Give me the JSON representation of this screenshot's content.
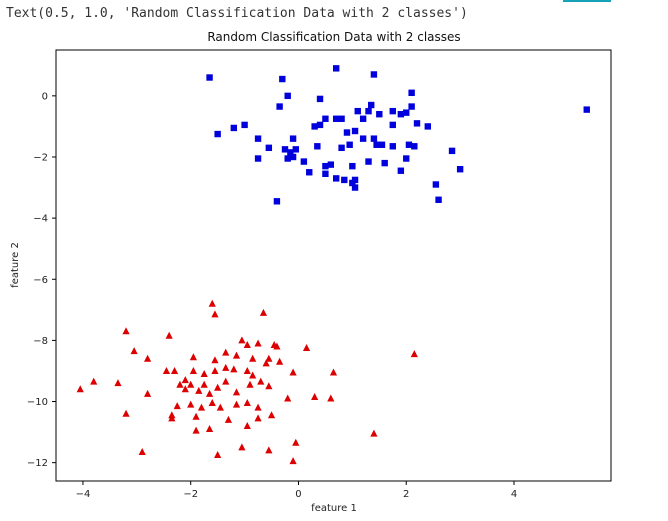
{
  "output_text": "Text(0.5, 1.0, 'Random Classification Data with 2 classes')",
  "colors": {
    "class0": "#0000dd",
    "class1": "#dd0000",
    "accent": "#17a2b8",
    "frame": "#000000"
  },
  "chart_data": {
    "type": "scatter",
    "title": "Random Classification Data with 2 classes",
    "xlabel": "feature 1",
    "ylabel": "feature 2",
    "xlim": [
      -4.5,
      5.8
    ],
    "ylim": [
      -12.6,
      1.5
    ],
    "xticks": [
      -4,
      -2,
      0,
      2,
      4
    ],
    "yticks": [
      0,
      -2,
      -4,
      -6,
      -8,
      -10,
      -12
    ],
    "grid": false,
    "series": [
      {
        "marker": "square",
        "color": "#0000dd",
        "points": [
          [
            -1.65,
            0.6
          ],
          [
            -0.3,
            0.55
          ],
          [
            0.7,
            0.9
          ],
          [
            1.4,
            0.7
          ],
          [
            -0.2,
            0.0
          ],
          [
            0.4,
            -0.1
          ],
          [
            2.1,
            0.1
          ],
          [
            -0.35,
            -0.35
          ],
          [
            1.35,
            -0.3
          ],
          [
            2.1,
            -0.35
          ],
          [
            5.35,
            -0.45
          ],
          [
            1.1,
            -0.5
          ],
          [
            1.3,
            -0.5
          ],
          [
            1.75,
            -0.5
          ],
          [
            0.5,
            -0.75
          ],
          [
            0.7,
            -0.75
          ],
          [
            0.8,
            -0.75
          ],
          [
            1.2,
            -0.75
          ],
          [
            1.5,
            -0.6
          ],
          [
            1.9,
            -0.6
          ],
          [
            2.0,
            -0.55
          ],
          [
            0.4,
            -0.95
          ],
          [
            0.3,
            -1.0
          ],
          [
            1.75,
            -0.95
          ],
          [
            2.2,
            -0.9
          ],
          [
            2.4,
            -1.0
          ],
          [
            -1.0,
            -0.95
          ],
          [
            -1.2,
            -1.05
          ],
          [
            -1.5,
            -1.25
          ],
          [
            -0.75,
            -1.4
          ],
          [
            -0.1,
            -1.4
          ],
          [
            0.9,
            -1.2
          ],
          [
            1.05,
            -1.15
          ],
          [
            1.2,
            -1.4
          ],
          [
            1.4,
            -1.4
          ],
          [
            -0.55,
            -1.7
          ],
          [
            -0.25,
            -1.75
          ],
          [
            -0.15,
            -1.85
          ],
          [
            -0.05,
            -1.75
          ],
          [
            0.35,
            -1.65
          ],
          [
            0.8,
            -1.7
          ],
          [
            0.95,
            -1.6
          ],
          [
            1.45,
            -1.6
          ],
          [
            1.55,
            -1.6
          ],
          [
            1.75,
            -1.65
          ],
          [
            2.05,
            -1.6
          ],
          [
            2.15,
            -1.65
          ],
          [
            2.85,
            -1.8
          ],
          [
            -0.75,
            -2.05
          ],
          [
            -0.2,
            -2.05
          ],
          [
            -0.1,
            -2.0
          ],
          [
            0.1,
            -2.15
          ],
          [
            0.5,
            -2.3
          ],
          [
            0.6,
            -2.25
          ],
          [
            1.0,
            -2.3
          ],
          [
            1.3,
            -2.15
          ],
          [
            1.6,
            -2.2
          ],
          [
            2.0,
            -2.05
          ],
          [
            0.5,
            -2.55
          ],
          [
            0.7,
            -2.7
          ],
          [
            0.85,
            -2.75
          ],
          [
            1.0,
            -2.85
          ],
          [
            1.05,
            -2.75
          ],
          [
            1.9,
            -2.45
          ],
          [
            3.0,
            -2.4
          ],
          [
            2.55,
            -2.9
          ],
          [
            1.05,
            -3.0
          ],
          [
            -0.4,
            -3.45
          ],
          [
            2.6,
            -3.4
          ],
          [
            0.2,
            -2.5
          ]
        ]
      },
      {
        "marker": "triangle",
        "color": "#dd0000",
        "points": [
          [
            -1.6,
            -6.8
          ],
          [
            -1.55,
            -7.15
          ],
          [
            -0.65,
            -7.1
          ],
          [
            -3.2,
            -7.7
          ],
          [
            -2.4,
            -7.85
          ],
          [
            -3.05,
            -8.35
          ],
          [
            -2.8,
            -8.6
          ],
          [
            -1.05,
            -8.0
          ],
          [
            -0.95,
            -8.15
          ],
          [
            -0.75,
            -8.1
          ],
          [
            -0.45,
            -8.15
          ],
          [
            -0.4,
            -8.2
          ],
          [
            0.15,
            -8.25
          ],
          [
            2.15,
            -8.45
          ],
          [
            -1.95,
            -8.55
          ],
          [
            -1.55,
            -8.65
          ],
          [
            -1.35,
            -8.4
          ],
          [
            -1.15,
            -8.5
          ],
          [
            -0.85,
            -8.6
          ],
          [
            -0.55,
            -8.6
          ],
          [
            -2.45,
            -9.0
          ],
          [
            -2.3,
            -9.0
          ],
          [
            -2.1,
            -9.3
          ],
          [
            -1.95,
            -9.0
          ],
          [
            -1.75,
            -9.1
          ],
          [
            -1.55,
            -9.0
          ],
          [
            -1.35,
            -8.9
          ],
          [
            -1.2,
            -8.95
          ],
          [
            -0.95,
            -9.0
          ],
          [
            -0.85,
            -9.15
          ],
          [
            -0.6,
            -8.75
          ],
          [
            -0.35,
            -8.7
          ],
          [
            -0.1,
            -9.05
          ],
          [
            0.65,
            -9.05
          ],
          [
            -4.05,
            -9.6
          ],
          [
            -3.8,
            -9.35
          ],
          [
            -3.35,
            -9.4
          ],
          [
            -2.8,
            -9.75
          ],
          [
            -2.2,
            -9.45
          ],
          [
            -2.1,
            -9.6
          ],
          [
            -2.0,
            -9.45
          ],
          [
            -1.85,
            -9.65
          ],
          [
            -1.75,
            -9.45
          ],
          [
            -1.65,
            -9.75
          ],
          [
            -1.5,
            -9.55
          ],
          [
            -1.35,
            -9.35
          ],
          [
            -1.15,
            -9.7
          ],
          [
            -0.9,
            -9.45
          ],
          [
            -0.7,
            -9.35
          ],
          [
            -0.55,
            -9.5
          ],
          [
            -0.2,
            -9.9
          ],
          [
            0.3,
            -9.85
          ],
          [
            0.6,
            -9.9
          ],
          [
            -3.2,
            -10.4
          ],
          [
            -2.25,
            -10.15
          ],
          [
            -2.0,
            -10.1
          ],
          [
            -1.8,
            -10.2
          ],
          [
            -1.6,
            -10.05
          ],
          [
            -1.45,
            -10.2
          ],
          [
            -1.15,
            -10.1
          ],
          [
            -0.95,
            -10.05
          ],
          [
            -0.75,
            -10.2
          ],
          [
            -0.5,
            -10.45
          ],
          [
            -2.35,
            -10.55
          ],
          [
            -1.9,
            -10.5
          ],
          [
            -1.3,
            -10.6
          ],
          [
            -0.75,
            -10.55
          ],
          [
            -0.95,
            -10.8
          ],
          [
            -1.9,
            -10.95
          ],
          [
            -1.65,
            -10.9
          ],
          [
            1.4,
            -11.05
          ],
          [
            -1.05,
            -11.5
          ],
          [
            -0.55,
            -11.6
          ],
          [
            -0.05,
            -11.35
          ],
          [
            -2.9,
            -11.65
          ],
          [
            -1.5,
            -11.75
          ],
          [
            -0.1,
            -11.95
          ],
          [
            -2.35,
            -10.45
          ]
        ]
      }
    ]
  }
}
